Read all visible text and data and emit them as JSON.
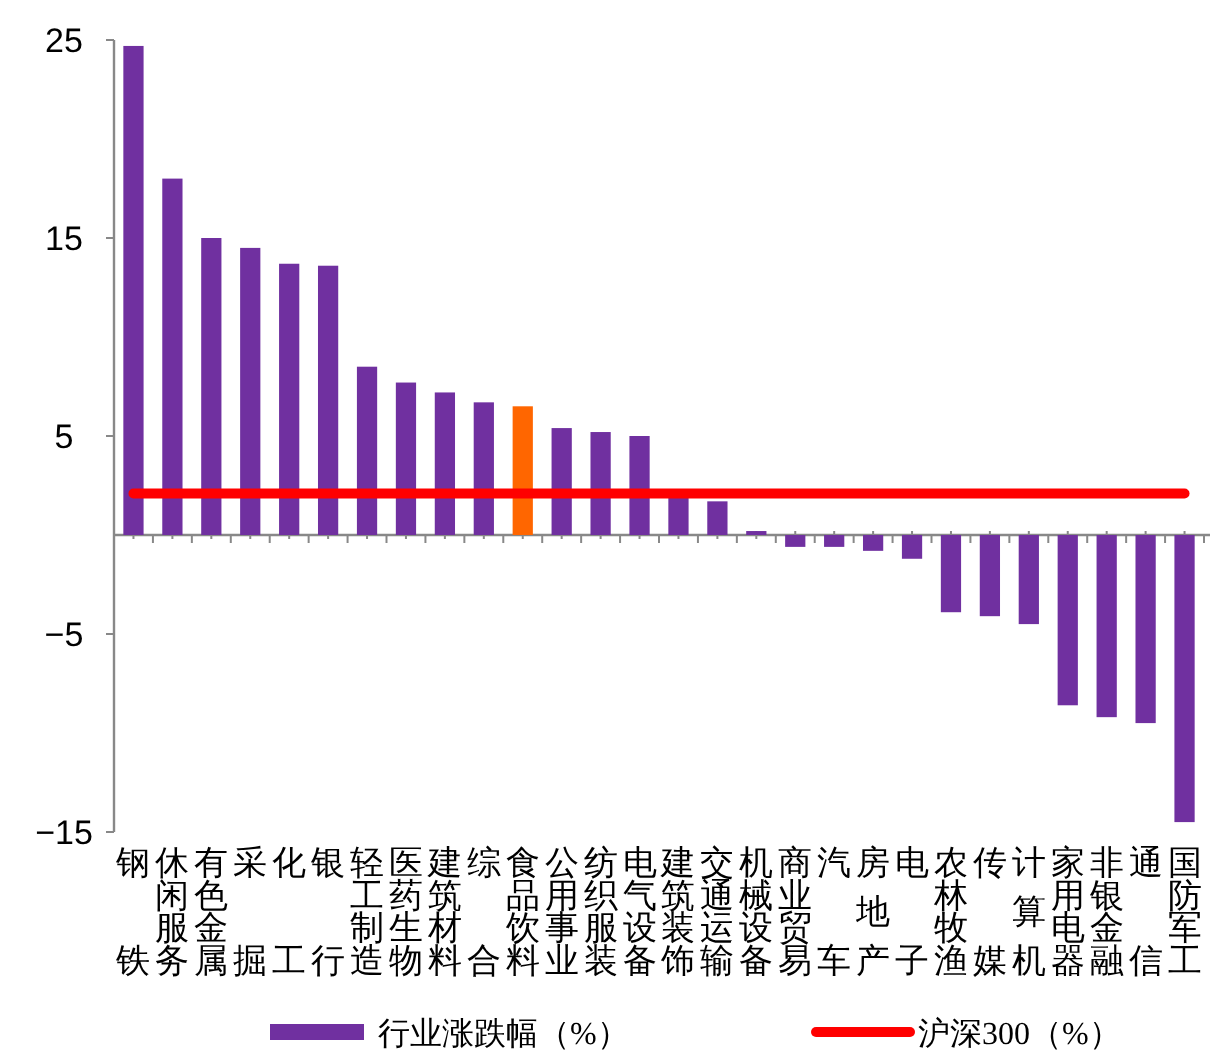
{
  "chart_data": {
    "type": "bar",
    "categories": [
      "钢铁",
      "休闲服务",
      "有色金属",
      "采掘",
      "化工",
      "银行",
      "轻工制造",
      "医药生物",
      "建筑材料",
      "综合",
      "食品饮料",
      "公用事业",
      "纺织服装",
      "电气设备",
      "建筑装饰",
      "交通运输",
      "机械设备",
      "商业贸易",
      "汽车",
      "房地产",
      "电子",
      "农林牧渔",
      "传媒",
      "计算机",
      "家用电器",
      "非银金融",
      "通信",
      "国防军工"
    ],
    "series": [
      {
        "name": "行业涨跌幅（%）",
        "color": "#7030a0",
        "colors": [
          "#7030a0",
          "#7030a0",
          "#7030a0",
          "#7030a0",
          "#7030a0",
          "#7030a0",
          "#7030a0",
          "#7030a0",
          "#7030a0",
          "#7030a0",
          "#ff6600",
          "#7030a0",
          "#7030a0",
          "#7030a0",
          "#7030a0",
          "#7030a0",
          "#7030a0",
          "#7030a0",
          "#7030a0",
          "#7030a0",
          "#7030a0",
          "#7030a0",
          "#7030a0",
          "#7030a0",
          "#7030a0",
          "#7030a0",
          "#7030a0",
          "#7030a0"
        ],
        "values": [
          24.7,
          18.0,
          15.0,
          14.5,
          13.7,
          13.6,
          8.5,
          7.7,
          7.2,
          6.7,
          6.5,
          5.4,
          5.2,
          5.0,
          1.9,
          1.7,
          0.2,
          -0.6,
          -0.6,
          -0.8,
          -1.2,
          -3.9,
          -4.1,
          -4.5,
          -8.6,
          -9.2,
          -9.5,
          -14.5
        ]
      },
      {
        "name": "沪深300（%）",
        "type": "line",
        "color": "#ff0000",
        "values": [
          2.1,
          2.1,
          2.1,
          2.1,
          2.1,
          2.1,
          2.1,
          2.1,
          2.1,
          2.1,
          2.1,
          2.1,
          2.1,
          2.1,
          2.1,
          2.1,
          2.1,
          2.1,
          2.1,
          2.1,
          2.1,
          2.1,
          2.1,
          2.1,
          2.1,
          2.1,
          2.1,
          2.1
        ]
      }
    ],
    "ylim": [
      -15,
      25
    ],
    "yticks": [
      -15,
      -5,
      5,
      15,
      25
    ],
    "grid": false,
    "legend": "bottom"
  }
}
